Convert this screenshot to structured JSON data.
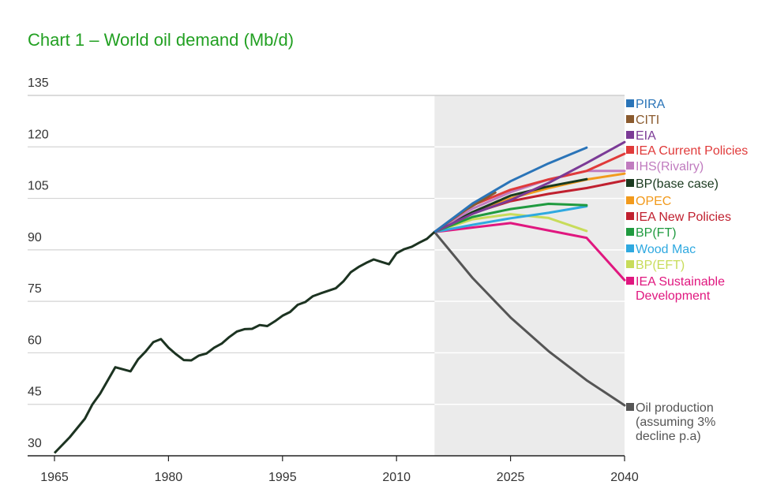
{
  "chart_data": {
    "type": "line",
    "title": "Chart 1 – World oil demand (Mb/d)",
    "xlabel": "",
    "ylabel": "",
    "xlim": [
      1965,
      2040
    ],
    "ylim": [
      30,
      135
    ],
    "x_ticks": [
      1965,
      1980,
      1995,
      2010,
      2025,
      2040
    ],
    "y_ticks": [
      30,
      45,
      60,
      75,
      90,
      105,
      120,
      135
    ],
    "grid": "horizontal",
    "forecast_shading_from": 2015,
    "legend_placement": "right",
    "historical": {
      "name": "World oil demand",
      "color": "#1c3321",
      "x": [
        1965,
        1967,
        1969,
        1970,
        1971,
        1973,
        1975,
        1976,
        1977,
        1978,
        1979,
        1980,
        1981,
        1982,
        1983,
        1984,
        1985,
        1986,
        1987,
        1988,
        1989,
        1990,
        1991,
        1992,
        1993,
        1994,
        1995,
        1996,
        1997,
        1998,
        1999,
        2000,
        2002,
        2003,
        2004,
        2005,
        2006,
        2007,
        2008,
        2009,
        2010,
        2011,
        2012,
        2013,
        2014,
        2015
      ],
      "y": [
        30.8,
        35.4,
        40.8,
        45,
        48.1,
        55.8,
        54.6,
        58.1,
        60.4,
        63.1,
        64,
        61.5,
        59.6,
        57.9,
        57.8,
        59.2,
        59.8,
        61.5,
        62.7,
        64.6,
        66.2,
        66.9,
        67,
        68.1,
        67.8,
        69.2,
        70.8,
        71.9,
        74,
        74.8,
        76.5,
        77.3,
        78.8,
        80.8,
        83.5,
        85,
        86.2,
        87.2,
        86.5,
        85.8,
        89,
        90.2,
        90.9,
        92.1,
        93.2,
        95.2
      ]
    },
    "series": [
      {
        "name": "PIRA",
        "color": "#2a74b8",
        "x": [
          2015,
          2020,
          2025,
          2030,
          2035
        ],
        "y": [
          95.2,
          103.5,
          110,
          115.2,
          119.8
        ]
      },
      {
        "name": "CITI",
        "color": "#8a5a2e",
        "x": [
          2015,
          2019,
          2023
        ],
        "y": [
          95.2,
          101.5,
          106.7
        ]
      },
      {
        "name": "EIA",
        "color": "#7b3a96",
        "x": [
          2015,
          2020,
          2025,
          2030,
          2035,
          2040
        ],
        "y": [
          95.2,
          100.5,
          104.5,
          109.5,
          115.3,
          121.4
        ]
      },
      {
        "name": "IEA Current Policies",
        "color": "#e03a3a",
        "x": [
          2015,
          2020,
          2025,
          2030,
          2035,
          2040
        ],
        "y": [
          95.2,
          103,
          107.5,
          110.5,
          113,
          118
        ]
      },
      {
        "name": "IHS(Rivalry)",
        "color": "#c07bbf",
        "x": [
          2015,
          2020,
          2025,
          2030,
          2035,
          2040
        ],
        "y": [
          95.2,
          102,
          106.8,
          110.5,
          113,
          113
        ]
      },
      {
        "name": "BP(base case)",
        "color": "#1a3a1f",
        "x": [
          2015,
          2020,
          2025,
          2030,
          2035
        ],
        "y": [
          95.2,
          101,
          105.8,
          108.5,
          110.6
        ]
      },
      {
        "name": "OPEC",
        "color": "#f29a1c",
        "x": [
          2015,
          2020,
          2025,
          2030,
          2035,
          2040
        ],
        "y": [
          95.2,
          100.5,
          105,
          108,
          110.5,
          112.2
        ]
      },
      {
        "name": "IEA New Policies",
        "color": "#c0202f",
        "x": [
          2015,
          2020,
          2025,
          2030,
          2035,
          2040
        ],
        "y": [
          95.2,
          100.7,
          104.2,
          106.3,
          108,
          110.2
        ]
      },
      {
        "name": "BP(FT)",
        "color": "#1f9a3f",
        "x": [
          2015,
          2020,
          2025,
          2030,
          2035
        ],
        "y": [
          95.2,
          99.6,
          101.9,
          103.4,
          103
        ]
      },
      {
        "name": "Wood Mac",
        "color": "#2fa9e0",
        "x": [
          2015,
          2020,
          2025,
          2030,
          2035
        ],
        "y": [
          95.2,
          97.3,
          99.2,
          100.8,
          102.7
        ]
      },
      {
        "name": "BP(EFT)",
        "color": "#c8dc5a",
        "x": [
          2015,
          2020,
          2025,
          2030,
          2035
        ],
        "y": [
          95.2,
          98.9,
          100.4,
          99.3,
          95.5
        ]
      },
      {
        "name": "IEA Sustainable Development",
        "color": "#e0177f",
        "x": [
          2015,
          2025,
          2035,
          2040
        ],
        "y": [
          95.2,
          97.8,
          93.5,
          81.2
        ]
      },
      {
        "name": "Oil production (assuming 3% decline p.a)",
        "color": "#555555",
        "x": [
          2015,
          2020,
          2025,
          2030,
          2035,
          2040
        ],
        "y": [
          95.2,
          81.8,
          70.3,
          60.5,
          52,
          44.7
        ]
      }
    ],
    "legend": [
      {
        "lines": [
          "PIRA"
        ],
        "color": "#2a74b8"
      },
      {
        "lines": [
          "CITI"
        ],
        "color": "#8a5a2e"
      },
      {
        "lines": [
          "EIA"
        ],
        "color": "#7b3a96"
      },
      {
        "lines": [
          "IEA Current Policies"
        ],
        "color": "#e03a3a"
      },
      {
        "lines": [
          "IHS(Rivalry)"
        ],
        "color": "#c07bbf"
      },
      {
        "lines": [
          "BP(base case)"
        ],
        "color": "#1a3a1f"
      },
      {
        "lines": [
          "OPEC"
        ],
        "color": "#f29a1c"
      },
      {
        "lines": [
          "IEA New Policies"
        ],
        "color": "#c0202f"
      },
      {
        "lines": [
          "BP(FT)"
        ],
        "color": "#1f9a3f"
      },
      {
        "lines": [
          "Wood Mac"
        ],
        "color": "#2fa9e0"
      },
      {
        "lines": [
          "BP(EFT)"
        ],
        "color": "#c8dc5a"
      },
      {
        "lines": [
          "IEA Sustainable",
          "Development"
        ],
        "color": "#e0177f"
      },
      {
        "lines": [
          "Oil production",
          "(assuming 3%",
          "decline p.a)"
        ],
        "color": "#555555"
      }
    ]
  }
}
